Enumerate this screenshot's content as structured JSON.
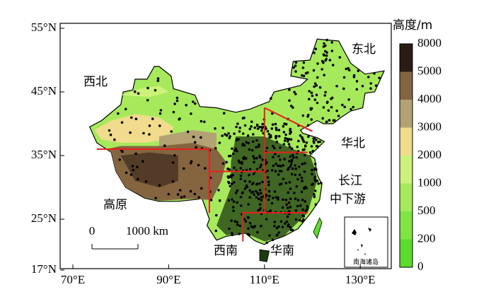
{
  "map": {
    "lat_labels": [
      "55°N",
      "45°N",
      "35°N",
      "25°N",
      "17°N"
    ],
    "lon_labels": [
      "70°E",
      "90°E",
      "110°E",
      "130°E"
    ],
    "regions": [
      "西北",
      "东北",
      "华北",
      "高原",
      "西南",
      "华南"
    ],
    "yangtze": [
      "长江",
      "中下游"
    ],
    "scale_bar": [
      "0",
      "1000 km"
    ],
    "inset_label": "南海诸岛",
    "colorbar": {
      "title": "高度/m",
      "labels": [
        "8000",
        "5000",
        "4000",
        "3000",
        "2000",
        "1000",
        "500",
        "200",
        "0"
      ],
      "colors": [
        "#2a1c14",
        "#85653f",
        "#b3a274",
        "#f0dc8c",
        "#cdf27a",
        "#a6ea5c",
        "#7fe444",
        "#5cdc2c"
      ]
    }
  }
}
